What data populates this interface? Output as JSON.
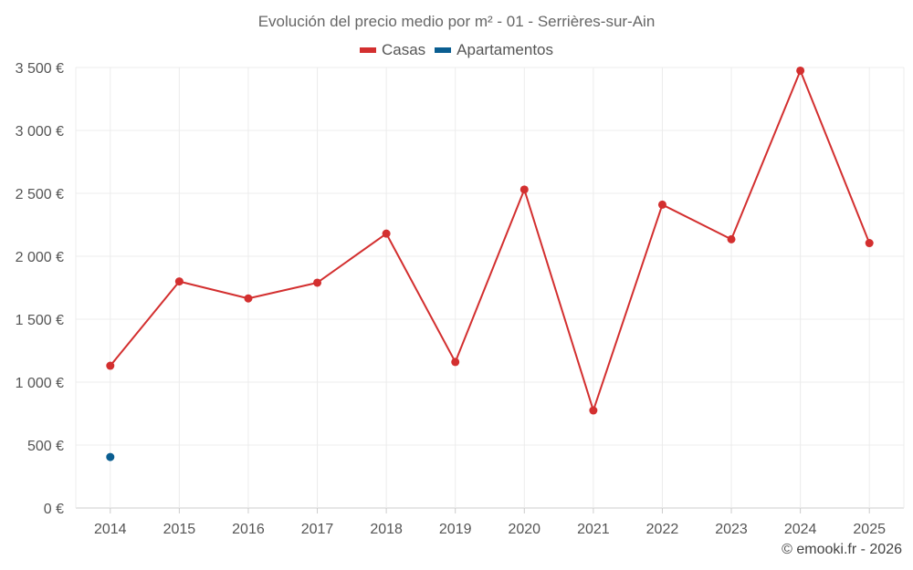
{
  "chart_data": {
    "type": "line",
    "title": "Evolución del precio medio por m² - 01 - Serrières-sur-Ain",
    "categories": [
      "2014",
      "2015",
      "2016",
      "2017",
      "2018",
      "2019",
      "2020",
      "2021",
      "2022",
      "2023",
      "2024",
      "2025"
    ],
    "series": [
      {
        "name": "Casas",
        "color": "#d32f2f",
        "values": [
          1130,
          1800,
          1665,
          1790,
          2180,
          1160,
          2530,
          775,
          2410,
          2135,
          3475,
          2105
        ]
      },
      {
        "name": "Apartamentos",
        "color": "#0a5e91",
        "values": [
          405,
          null,
          null,
          null,
          null,
          null,
          null,
          null,
          null,
          null,
          null,
          null
        ]
      }
    ],
    "ylim": [
      0,
      3500
    ],
    "yticks": [
      0,
      500,
      1000,
      1500,
      2000,
      2500,
      3000,
      3500
    ],
    "ytick_labels": [
      "0 €",
      "500 €",
      "1 000 €",
      "1 500 €",
      "2 000 €",
      "2 500 €",
      "3 000 €",
      "3 500 €"
    ],
    "xlabel": "",
    "ylabel": "",
    "grid": true,
    "legend_position": "top-center"
  },
  "footer": {
    "credit": "© emooki.fr - 2026"
  }
}
